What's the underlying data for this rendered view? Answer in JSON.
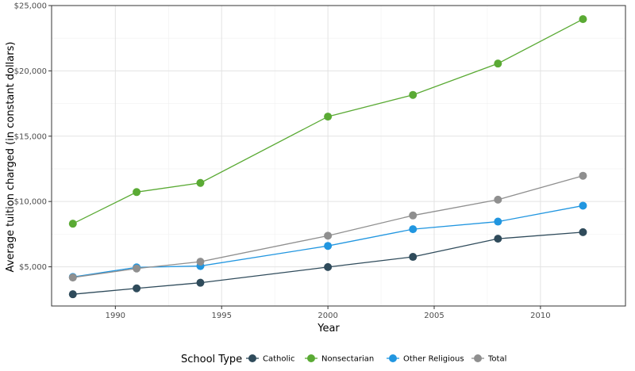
{
  "chart_data": {
    "type": "line",
    "xlabel": "Year",
    "ylabel": "Average tuition charged (in constant dollars)",
    "x": [
      1988,
      1991,
      1994,
      2000,
      2004,
      2008,
      2012
    ],
    "xlim": [
      1987,
      2014
    ],
    "ylim": [
      2000,
      25000
    ],
    "x_ticks": [
      1990,
      1995,
      2000,
      2005,
      2010
    ],
    "x_tick_labels": [
      "1990",
      "1995",
      "2000",
      "2005",
      "2010"
    ],
    "y_ticks": [
      5000,
      10000,
      15000,
      20000,
      25000
    ],
    "y_tick_labels": [
      "$5,000",
      "$10,000",
      "$15,000",
      "$20,000",
      "$25,000"
    ],
    "grid": true,
    "legend_title": "School Type",
    "legend_position": "bottom",
    "series": [
      {
        "name": "Catholic",
        "color": "#2F4B5B",
        "values": [
          2900,
          3350,
          3780,
          4980,
          5760,
          7150,
          7650
        ]
      },
      {
        "name": "Nonsectarian",
        "color": "#5AAA34",
        "values": [
          8300,
          10720,
          11420,
          16500,
          18160,
          20560,
          23960
        ]
      },
      {
        "name": "Other Religious",
        "color": "#2196E0",
        "values": [
          4220,
          4960,
          5060,
          6600,
          7880,
          8460,
          9680
        ]
      },
      {
        "name": "Total",
        "color": "#8F8F8F",
        "values": [
          4180,
          4870,
          5390,
          7380,
          8930,
          10140,
          11970
        ]
      }
    ]
  }
}
